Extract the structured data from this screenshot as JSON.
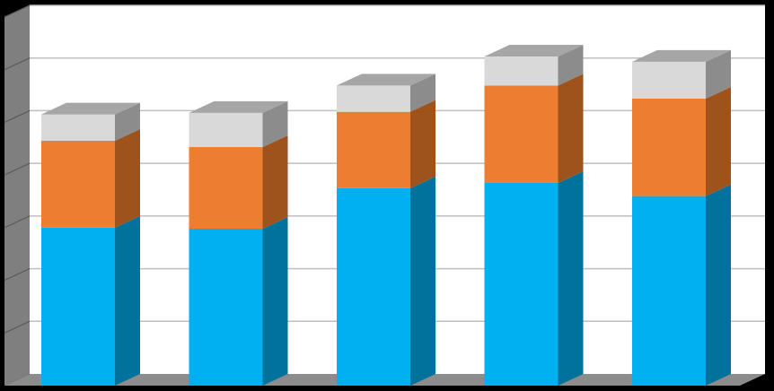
{
  "chart_data": {
    "type": "bar",
    "stacked": true,
    "three_d": true,
    "title": "",
    "xlabel": "",
    "ylabel": "",
    "categories": [
      "",
      "",
      "",
      "",
      ""
    ],
    "ylim": [
      0,
      7
    ],
    "grid": true,
    "legend": "none",
    "series": [
      {
        "color": "#00B0F0",
        "side_color": "#00729C",
        "values": [
          3.0,
          2.98,
          3.75,
          3.85,
          3.6
        ]
      },
      {
        "color": "#ED7D31",
        "side_color": "#9E521C",
        "values": [
          1.65,
          1.55,
          1.45,
          1.85,
          1.85
        ]
      },
      {
        "color": "#D9D9D9",
        "side_color": "#8C8C8C",
        "values": [
          0.5,
          0.65,
          0.5,
          0.55,
          0.7
        ]
      }
    ],
    "colors": {
      "background": "#000000",
      "plot_back": "#FFFFFF",
      "left_wall": "#7F7F7F",
      "floor": "#8C8C8C",
      "gridline": "#BFBFBF"
    }
  }
}
